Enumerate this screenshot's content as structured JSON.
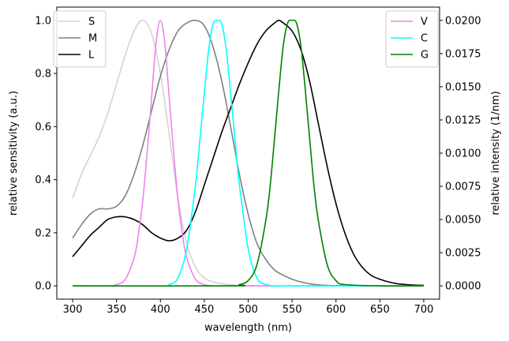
{
  "chart_data": {
    "type": "line",
    "xlabel": "wavelength (nm)",
    "ylabel_left": "relative sensitivity (a.u.)",
    "ylabel_right": "relative intensity (1/nm)",
    "xlim": [
      282,
      718
    ],
    "ylim_left": [
      -0.05,
      1.05
    ],
    "ylim_right": [
      -0.001,
      0.021
    ],
    "x_ticks": [
      300,
      350,
      400,
      450,
      500,
      550,
      600,
      650,
      700
    ],
    "y_ticks_left": [
      0.0,
      0.2,
      0.4,
      0.6,
      0.8,
      1.0
    ],
    "y_ticks_right": [
      0.0,
      0.0025,
      0.005,
      0.0075,
      0.01,
      0.0125,
      0.015,
      0.0175,
      0.02
    ],
    "y_tick_labels_left": [
      "0.0",
      "0.2",
      "0.4",
      "0.6",
      "0.8",
      "1.0"
    ],
    "y_tick_labels_right": [
      "0.0000",
      "0.0025",
      "0.0050",
      "0.0075",
      "0.0100",
      "0.0125",
      "0.0150",
      "0.0175",
      "0.0200"
    ],
    "legend_left_position": "top-left",
    "legend_right_position": "top-right",
    "grid": false,
    "series_left": [
      {
        "name": "S",
        "color": "#d3d3d3",
        "x": [
          300,
          310,
          320,
          330,
          340,
          350,
          360,
          370,
          380,
          390,
          400,
          410,
          420,
          430,
          440,
          450,
          460,
          470,
          480,
          490,
          500,
          510,
          520,
          540,
          560,
          600,
          650,
          700
        ],
        "y": [
          0.33,
          0.42,
          0.49,
          0.56,
          0.65,
          0.76,
          0.87,
          0.96,
          1.0,
          0.95,
          0.8,
          0.57,
          0.33,
          0.16,
          0.07,
          0.03,
          0.015,
          0.008,
          0.004,
          0.002,
          0.001,
          0.0,
          0.0,
          0.0,
          0.0,
          0.0,
          0.0,
          0.0
        ]
      },
      {
        "name": "M",
        "color": "#808080",
        "x": [
          300,
          310,
          320,
          330,
          340,
          350,
          360,
          370,
          380,
          390,
          400,
          410,
          420,
          430,
          440,
          450,
          460,
          470,
          480,
          490,
          500,
          510,
          520,
          530,
          540,
          550,
          560,
          570,
          580,
          600,
          650,
          700
        ],
        "y": [
          0.18,
          0.23,
          0.27,
          0.29,
          0.29,
          0.3,
          0.34,
          0.42,
          0.53,
          0.66,
          0.79,
          0.89,
          0.96,
          0.99,
          1.0,
          0.98,
          0.9,
          0.77,
          0.6,
          0.42,
          0.27,
          0.16,
          0.1,
          0.06,
          0.04,
          0.025,
          0.015,
          0.008,
          0.004,
          0.001,
          0.0,
          0.0
        ]
      },
      {
        "name": "L",
        "color": "#000000",
        "x": [
          300,
          310,
          320,
          330,
          340,
          350,
          360,
          370,
          380,
          390,
          400,
          410,
          420,
          430,
          440,
          450,
          460,
          470,
          480,
          490,
          500,
          510,
          520,
          530,
          535,
          540,
          550,
          560,
          570,
          580,
          590,
          600,
          610,
          620,
          630,
          640,
          650,
          660,
          670,
          680,
          690,
          700
        ],
        "y": [
          0.11,
          0.15,
          0.19,
          0.22,
          0.25,
          0.26,
          0.26,
          0.25,
          0.23,
          0.2,
          0.18,
          0.17,
          0.18,
          0.21,
          0.28,
          0.38,
          0.48,
          0.58,
          0.67,
          0.76,
          0.84,
          0.91,
          0.96,
          0.99,
          1.0,
          0.99,
          0.96,
          0.89,
          0.77,
          0.61,
          0.45,
          0.31,
          0.2,
          0.12,
          0.07,
          0.04,
          0.025,
          0.015,
          0.008,
          0.005,
          0.003,
          0.002
        ]
      }
    ],
    "series_right": [
      {
        "name": "V",
        "color": "#ee82ee",
        "x": [
          300,
          340,
          350,
          360,
          370,
          375,
          380,
          385,
          390,
          395,
          400,
          405,
          410,
          415,
          420,
          425,
          430,
          440,
          450,
          460,
          470,
          500,
          550,
          600,
          650,
          700
        ],
        "y": [
          0.0,
          0.0,
          0.0001,
          0.0005,
          0.0021,
          0.0039,
          0.0065,
          0.0101,
          0.0142,
          0.0183,
          0.02,
          0.0183,
          0.0142,
          0.0101,
          0.0065,
          0.0039,
          0.0021,
          0.0005,
          0.0001,
          0.0,
          0.0,
          0.0,
          0.0,
          0.0,
          0.0,
          0.0
        ]
      },
      {
        "name": "C",
        "color": "#00ffff",
        "x": [
          300,
          400,
          410,
          420,
          430,
          440,
          445,
          450,
          455,
          460,
          465,
          470,
          475,
          480,
          485,
          490,
          500,
          510,
          520,
          530,
          550,
          600,
          650,
          700
        ],
        "y": [
          0.0,
          0.0,
          0.0001,
          0.0006,
          0.0028,
          0.0076,
          0.011,
          0.0145,
          0.0178,
          0.0197,
          0.02,
          0.0197,
          0.0178,
          0.0145,
          0.011,
          0.0076,
          0.0028,
          0.0006,
          0.0001,
          0.0,
          0.0,
          0.0,
          0.0,
          0.0
        ]
      },
      {
        "name": "G",
        "color": "#008000",
        "x": [
          300,
          480,
          490,
          500,
          510,
          520,
          525,
          530,
          535,
          540,
          545,
          550,
          555,
          560,
          565,
          570,
          575,
          580,
          590,
          600,
          610,
          650,
          700
        ],
        "y": [
          0.0,
          0.0,
          0.0001,
          0.0004,
          0.0016,
          0.0049,
          0.0075,
          0.0111,
          0.0148,
          0.0181,
          0.0198,
          0.02,
          0.0198,
          0.0181,
          0.0148,
          0.0111,
          0.0075,
          0.0049,
          0.0016,
          0.0004,
          0.0001,
          0.0,
          0.0
        ]
      }
    ]
  }
}
